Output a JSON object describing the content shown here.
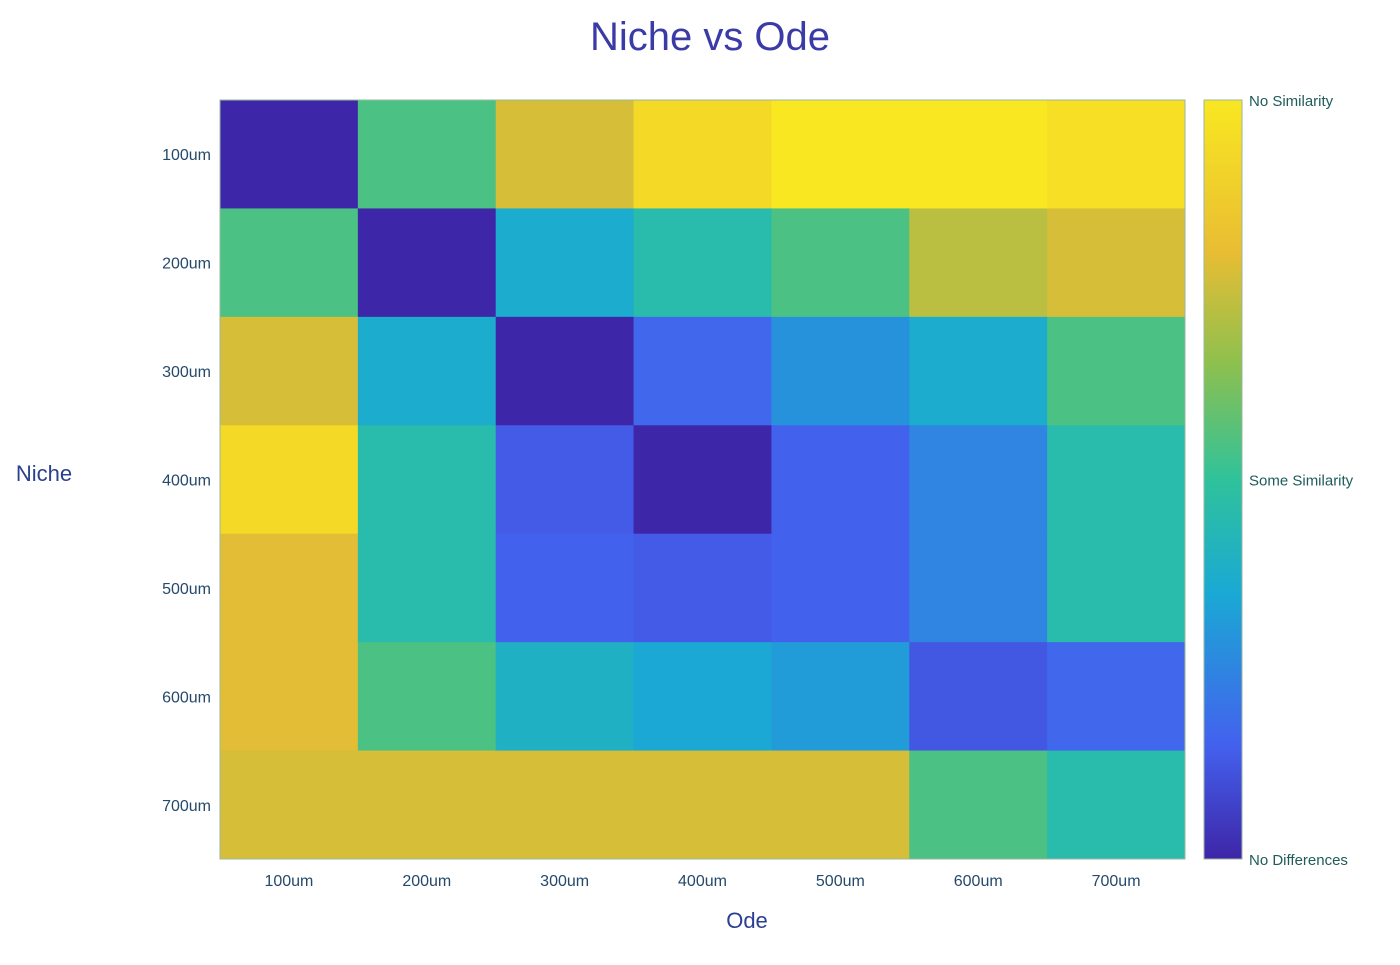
{
  "chart_data": {
    "type": "heatmap",
    "title": "Niche vs Ode",
    "xlabel": "Ode",
    "ylabel": "Niche",
    "x_categories": [
      "100um",
      "200um",
      "300um",
      "400um",
      "500um",
      "600um",
      "700um"
    ],
    "y_categories": [
      "100um",
      "200um",
      "300um",
      "400um",
      "500um",
      "600um",
      "700um"
    ],
    "value_range": [
      0,
      1
    ],
    "values": [
      [
        0.0,
        0.55,
        0.8,
        0.95,
        1.0,
        1.0,
        0.97
      ],
      [
        0.55,
        0.0,
        0.35,
        0.45,
        0.55,
        0.75,
        0.8
      ],
      [
        0.8,
        0.35,
        0.0,
        0.18,
        0.28,
        0.35,
        0.55
      ],
      [
        0.95,
        0.45,
        0.15,
        0.0,
        0.17,
        0.25,
        0.45
      ],
      [
        0.82,
        0.45,
        0.17,
        0.15,
        0.17,
        0.25,
        0.45
      ],
      [
        0.82,
        0.55,
        0.38,
        0.33,
        0.3,
        0.14,
        0.18
      ],
      [
        0.8,
        0.8,
        0.8,
        0.8,
        0.8,
        0.55,
        0.45
      ]
    ],
    "colorbar": {
      "labels": [
        {
          "value": 1,
          "text": "No Similarity"
        },
        {
          "value": 0.5,
          "text": "Some Similarity"
        },
        {
          "value": 0,
          "text": "No Differences"
        }
      ]
    },
    "colormap": [
      "#3e26a8",
      "#4361ee",
      "#1aa9d4",
      "#2fc29b",
      "#8cc04f",
      "#e9bd33",
      "#f9e721"
    ],
    "grid": false
  }
}
